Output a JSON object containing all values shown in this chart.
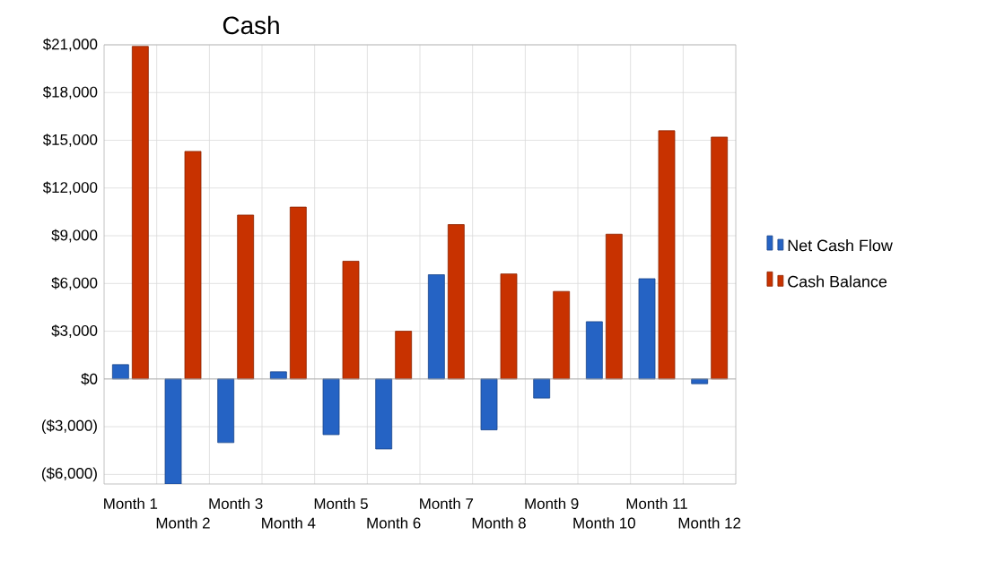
{
  "chart_data": {
    "type": "bar",
    "title": "Cash",
    "categories": [
      "Month 1",
      "Month 2",
      "Month 3",
      "Month 4",
      "Month 5",
      "Month 6",
      "Month 7",
      "Month 8",
      "Month 9",
      "Month 10",
      "Month 11",
      "Month 12"
    ],
    "series": [
      {
        "name": "Net Cash Flow",
        "color": "#2563c4",
        "values": [
          900,
          -6600,
          -4000,
          450,
          -3500,
          -4400,
          6550,
          -3200,
          -1200,
          3600,
          6300,
          -300
        ]
      },
      {
        "name": "Cash Balance",
        "color": "#c83200",
        "values": [
          20900,
          14300,
          10300,
          10800,
          7400,
          3000,
          9700,
          6600,
          5500,
          9100,
          15600,
          15200
        ]
      }
    ],
    "ylim": [
      -6600,
      21000
    ],
    "yticks": [
      {
        "value": -6000,
        "label": "($6,000)"
      },
      {
        "value": -3000,
        "label": "($3,000)"
      },
      {
        "value": 0,
        "label": "$0"
      },
      {
        "value": 3000,
        "label": "$3,000"
      },
      {
        "value": 6000,
        "label": "$6,000"
      },
      {
        "value": 9000,
        "label": "$9,000"
      },
      {
        "value": 12000,
        "label": "$12,000"
      },
      {
        "value": 15000,
        "label": "$15,000"
      },
      {
        "value": 18000,
        "label": "$18,000"
      },
      {
        "value": 21000,
        "label": "$21,000"
      }
    ],
    "grid": true,
    "legend": "right"
  }
}
